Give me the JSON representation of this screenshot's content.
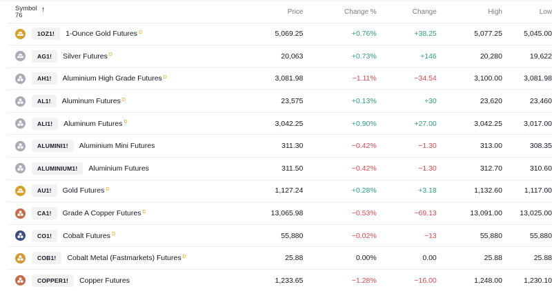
{
  "header": {
    "symbol_label": "Symbol",
    "symbol_count": "76",
    "sort_icon": "arrow-up-icon",
    "columns": [
      "Price",
      "Change %",
      "Change",
      "High",
      "Low"
    ]
  },
  "colors": {
    "positive": "#2e9d7b",
    "negative": "#e0474f",
    "delayed_badge": "#ff9800",
    "gold": "#d4a02a",
    "silver": "#a9abb5",
    "aluminium": "#a9abb5",
    "copper": "#c26d4a",
    "cobalt_blue": "#3d4f82",
    "cobalt_metal": "#d29a35"
  },
  "rows": [
    {
      "ticker": "1OZ1!",
      "name": "1-Ounce Gold Futures",
      "delayed": "D",
      "icon": "gold-bar",
      "icon_color": "#d4a02a",
      "price": "5,069.25",
      "change_pct": "+0.76%",
      "change": "+38.25",
      "high": "5,077.25",
      "low": "5,045.00",
      "dir": "pos"
    },
    {
      "ticker": "AG1!",
      "name": "Silver Futures",
      "delayed": "D",
      "icon": "gold-bar",
      "icon_color": "#a9abb5",
      "price": "20,063",
      "change_pct": "+0.73%",
      "change": "+146",
      "high": "20,280",
      "low": "19,622",
      "dir": "pos"
    },
    {
      "ticker": "AH1!",
      "name": "Aluminium High Grade Futures",
      "delayed": "D",
      "icon": "metal-balls",
      "icon_color": "#a9abb5",
      "price": "3,081.98",
      "change_pct": "−1.11%",
      "change": "−34.54",
      "high": "3,100.00",
      "low": "3,081.98",
      "dir": "neg"
    },
    {
      "ticker": "AL1!",
      "name": "Aluminum Futures",
      "delayed": "D",
      "icon": "metal-balls",
      "icon_color": "#a9abb5",
      "price": "23,575",
      "change_pct": "+0.13%",
      "change": "+30",
      "high": "23,620",
      "low": "23,460",
      "dir": "pos"
    },
    {
      "ticker": "ALI1!",
      "name": "Aluminum Futures",
      "delayed": "D",
      "icon": "metal-balls",
      "icon_color": "#a9abb5",
      "price": "3,042.25",
      "change_pct": "+0.90%",
      "change": "+27.00",
      "high": "3,042.25",
      "low": "3,017.00",
      "dir": "pos"
    },
    {
      "ticker": "ALUMINI1!",
      "name": "Aluminium Mini Futures",
      "delayed": "",
      "icon": "metal-balls",
      "icon_color": "#a9abb5",
      "price": "311.30",
      "change_pct": "−0.42%",
      "change": "−1.30",
      "high": "313.00",
      "low": "308.35",
      "dir": "neg"
    },
    {
      "ticker": "ALUMINIUM1!",
      "name": "Aluminium Futures",
      "delayed": "",
      "icon": "metal-balls",
      "icon_color": "#a9abb5",
      "price": "311.50",
      "change_pct": "−0.42%",
      "change": "−1.30",
      "high": "312.70",
      "low": "310.60",
      "dir": "neg"
    },
    {
      "ticker": "AU1!",
      "name": "Gold Futures",
      "delayed": "D",
      "icon": "gold-bar",
      "icon_color": "#d4a02a",
      "price": "1,127.24",
      "change_pct": "+0.28%",
      "change": "+3.18",
      "high": "1,132.60",
      "low": "1,117.00",
      "dir": "pos"
    },
    {
      "ticker": "CA1!",
      "name": "Grade A Copper Futures",
      "delayed": "D",
      "icon": "metal-balls",
      "icon_color": "#c26d4a",
      "price": "13,065.98",
      "change_pct": "−0.53%",
      "change": "−69.13",
      "high": "13,091.00",
      "low": "13,025.00",
      "dir": "neg"
    },
    {
      "ticker": "CO1!",
      "name": "Cobalt Futures",
      "delayed": "D",
      "icon": "metal-balls",
      "icon_color": "#3d4f82",
      "price": "55,880",
      "change_pct": "−0.02%",
      "change": "−13",
      "high": "55,880",
      "low": "55,880",
      "dir": "neg"
    },
    {
      "ticker": "COB1!",
      "name": "Cobalt Metal (Fastmarkets) Futures",
      "delayed": "D",
      "icon": "metal-balls",
      "icon_color": "#d29a35",
      "price": "25.88",
      "change_pct": "0.00%",
      "change": "0.00",
      "high": "25.88",
      "low": "25.88",
      "dir": "neu"
    },
    {
      "ticker": "COPPER1!",
      "name": "Copper Futures",
      "delayed": "",
      "icon": "metal-balls",
      "icon_color": "#c26d4a",
      "price": "1,233.65",
      "change_pct": "−1.28%",
      "change": "−16.00",
      "high": "1,248.00",
      "low": "1,230.10",
      "dir": "neg"
    }
  ]
}
